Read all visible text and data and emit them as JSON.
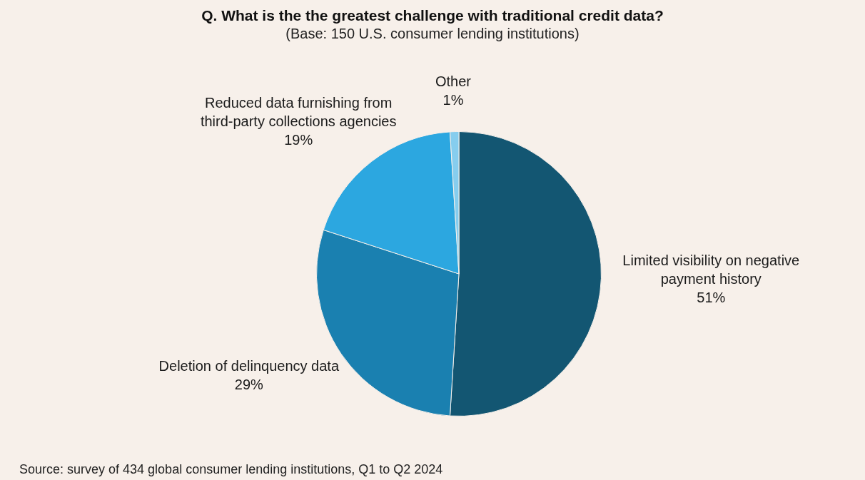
{
  "chart_data": {
    "type": "pie",
    "title": "Q. What is the the greatest challenge with traditional credit data?",
    "subtitle": "(Base: 150 U.S. consumer lending institutions)",
    "categories": [
      "Limited visibility on negative payment history",
      "Deletion of delinquency data",
      "Reduced data furnishing from third-party collections agencies",
      "Other"
    ],
    "values": [
      51,
      29,
      19,
      1
    ],
    "value_labels": [
      "51%",
      "29%",
      "19%",
      "1%"
    ],
    "colors": [
      "#135672",
      "#1a80b0",
      "#2ca7e0",
      "#86cdee"
    ],
    "annotations": [
      "Source: survey of 434 global consumer lending institutions, Q1 to Q2 2024"
    ]
  }
}
